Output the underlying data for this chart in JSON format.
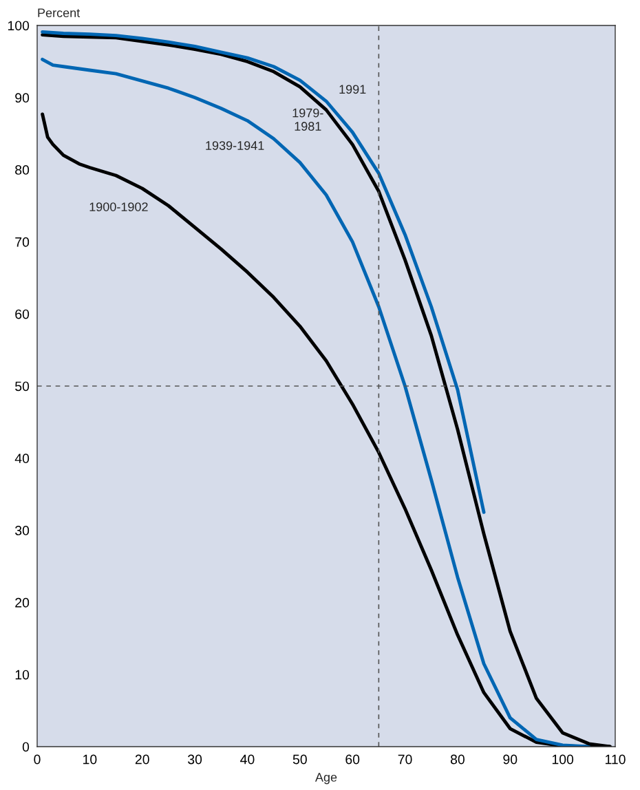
{
  "chart_data": {
    "type": "line",
    "xlabel": "Age",
    "ylabel": "Percent",
    "xlim": [
      0,
      110
    ],
    "ylim": [
      0,
      100
    ],
    "xticks": [
      0,
      10,
      20,
      30,
      40,
      50,
      60,
      70,
      80,
      90,
      100,
      110
    ],
    "yticks": [
      0,
      10,
      20,
      30,
      40,
      50,
      60,
      70,
      80,
      90,
      100
    ],
    "grid": false,
    "legend": false,
    "marker": "none",
    "line_style": "solid",
    "ref_lines": [
      {
        "axis": "x",
        "value": 65,
        "line_style": "dashed",
        "color": "#555555"
      },
      {
        "axis": "y",
        "value": 50,
        "line_style": "dashed",
        "color": "#555555"
      }
    ],
    "series": [
      {
        "name": "1900-1902",
        "color": "#000000",
        "x": [
          1,
          2,
          3,
          5,
          8,
          10,
          15,
          20,
          25,
          30,
          35,
          40,
          45,
          50,
          55,
          60,
          65,
          70,
          75,
          80,
          85,
          90,
          95,
          100,
          105,
          109
        ],
        "values": [
          87.7,
          84.5,
          83.5,
          82,
          80.8,
          80.3,
          79.2,
          77.4,
          75,
          72,
          69,
          65.8,
          62.3,
          58.3,
          53.5,
          47.5,
          40.8,
          33,
          24.5,
          15.5,
          7.5,
          2.5,
          0.6,
          0.1,
          0,
          0
        ]
      },
      {
        "name": "1939-1941",
        "color": "#0066b3",
        "x": [
          1,
          3,
          5,
          10,
          15,
          20,
          25,
          30,
          35,
          40,
          45,
          50,
          55,
          60,
          65,
          70,
          75,
          80,
          85,
          90,
          95,
          100,
          105
        ],
        "values": [
          95.3,
          94.5,
          94.3,
          93.8,
          93.3,
          92.3,
          91.3,
          90,
          88.5,
          86.8,
          84.3,
          81,
          76.5,
          70,
          61,
          50,
          37,
          23.5,
          11.5,
          4,
          1,
          0.2,
          0
        ]
      },
      {
        "name": "1979-\n1981",
        "color": "#000000",
        "x": [
          1,
          5,
          10,
          15,
          20,
          25,
          30,
          35,
          40,
          45,
          50,
          55,
          60,
          65,
          70,
          75,
          80,
          85,
          90,
          95,
          100,
          105,
          109
        ],
        "values": [
          98.7,
          98.5,
          98.4,
          98.3,
          97.8,
          97.3,
          96.7,
          96,
          95,
          93.6,
          91.5,
          88.3,
          83.5,
          77,
          67.5,
          57,
          44,
          29.5,
          16,
          6.7,
          1.9,
          0.4,
          0
        ]
      },
      {
        "name": "1991",
        "color": "#0066b3",
        "x": [
          1,
          5,
          10,
          15,
          20,
          25,
          30,
          35,
          40,
          45,
          50,
          55,
          60,
          65,
          70,
          75,
          80,
          85
        ],
        "values": [
          99.1,
          98.9,
          98.8,
          98.6,
          98.2,
          97.7,
          97.1,
          96.3,
          95.5,
          94.3,
          92.4,
          89.5,
          85.2,
          79.5,
          71,
          61,
          49.5,
          32.5
        ]
      }
    ]
  }
}
